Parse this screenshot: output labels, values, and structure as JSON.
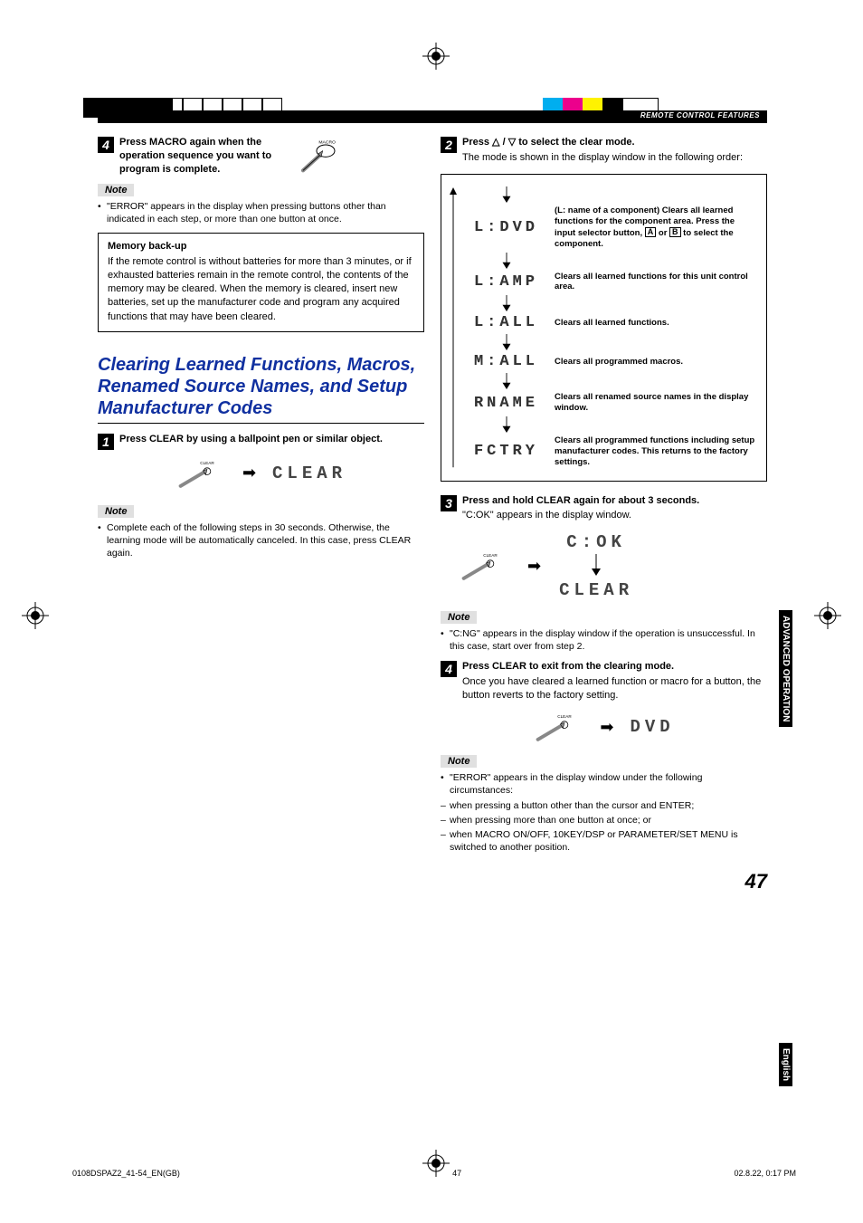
{
  "header": {
    "label": "REMOTE CONTROL FEATURES"
  },
  "colors": {
    "section_title": "#1030a0",
    "note_bg": "#e0e0e0",
    "reg_cyan": "#00aeef",
    "reg_magenta": "#ec008c",
    "reg_yellow": "#fff200"
  },
  "left": {
    "step4": {
      "num": "4",
      "text": "Press MACRO again when the operation sequence you want to program is complete.",
      "icon_label": "MACRO"
    },
    "note1": "\"ERROR\" appears in the display when pressing buttons other than indicated in each step, or more than one button at once.",
    "memory_box": {
      "title": "Memory back-up",
      "body": "If the remote control is without batteries for more than 3 minutes, or if exhausted batteries remain in the remote control, the contents of the memory may be cleared. When the memory is cleared, insert new batteries, set up the manufacturer code and program any acquired functions that may have been cleared."
    },
    "section_title": "Clearing Learned Functions, Macros, Renamed Source Names, and Setup Manufacturer Codes",
    "step1": {
      "num": "1",
      "text": "Press CLEAR by using a ballpoint pen or similar object.",
      "btn_label": "CLEAR",
      "display": "CLEAR"
    },
    "note2": "Complete each of the following steps in 30 seconds. Otherwise, the learning mode will be automatically canceled. In this case, press CLEAR again."
  },
  "right": {
    "step2": {
      "num": "2",
      "lead": "Press",
      "tail": "to select the clear mode.",
      "body": "The mode is shown in the display window in the following order:"
    },
    "diagram": [
      {
        "glyph": "L:DVD",
        "desc": "(L: name of a component) Clears all learned functions for the component area. Press the input selector button, [A] or [B] to select the component."
      },
      {
        "glyph": "L:AMP",
        "desc": "Clears all learned functions for this unit control area."
      },
      {
        "glyph": "L:ALL",
        "desc": "Clears all learned functions."
      },
      {
        "glyph": "M:ALL",
        "desc": "Clears all programmed macros."
      },
      {
        "glyph": "RNAME",
        "desc": "Clears all renamed source names in the display window."
      },
      {
        "glyph": "FCTRY",
        "desc": "Clears all programmed functions including setup manufacturer codes. This returns to the factory settings."
      }
    ],
    "step3": {
      "num": "3",
      "text": "Press and hold CLEAR again for about 3 seconds.",
      "body": "\"C:OK\" appears in the display window.",
      "btn_label": "CLEAR",
      "disp_top": "C:OK",
      "disp_bot": "CLEAR"
    },
    "note3": "\"C:NG\" appears in the display window if the operation is unsuccessful. In this case, start over from step 2.",
    "step4r": {
      "num": "4",
      "text": "Press CLEAR to exit from the clearing mode.",
      "body": "Once you have cleared a learned function or macro for a button, the button reverts to the factory setting.",
      "btn_label": "CLEAR",
      "display": " DVD "
    },
    "note4_intro": "\"ERROR\" appears in the display window under the following circumstances:",
    "note4_items": [
      "when pressing a button other than the cursor and ENTER;",
      "when pressing more than one button at once; or",
      "when MACRO ON/OFF, 10KEY/DSP or PARAMETER/SET MENU is switched to another position."
    ]
  },
  "side_tabs": {
    "adv": "ADVANCED OPERATION",
    "lang": "English"
  },
  "page_number": "47",
  "footer": {
    "left": "0108DSPAZ2_41-54_EN(GB)",
    "mid": "47",
    "right": "02.8.22, 0:17 PM"
  },
  "note_label": "Note"
}
